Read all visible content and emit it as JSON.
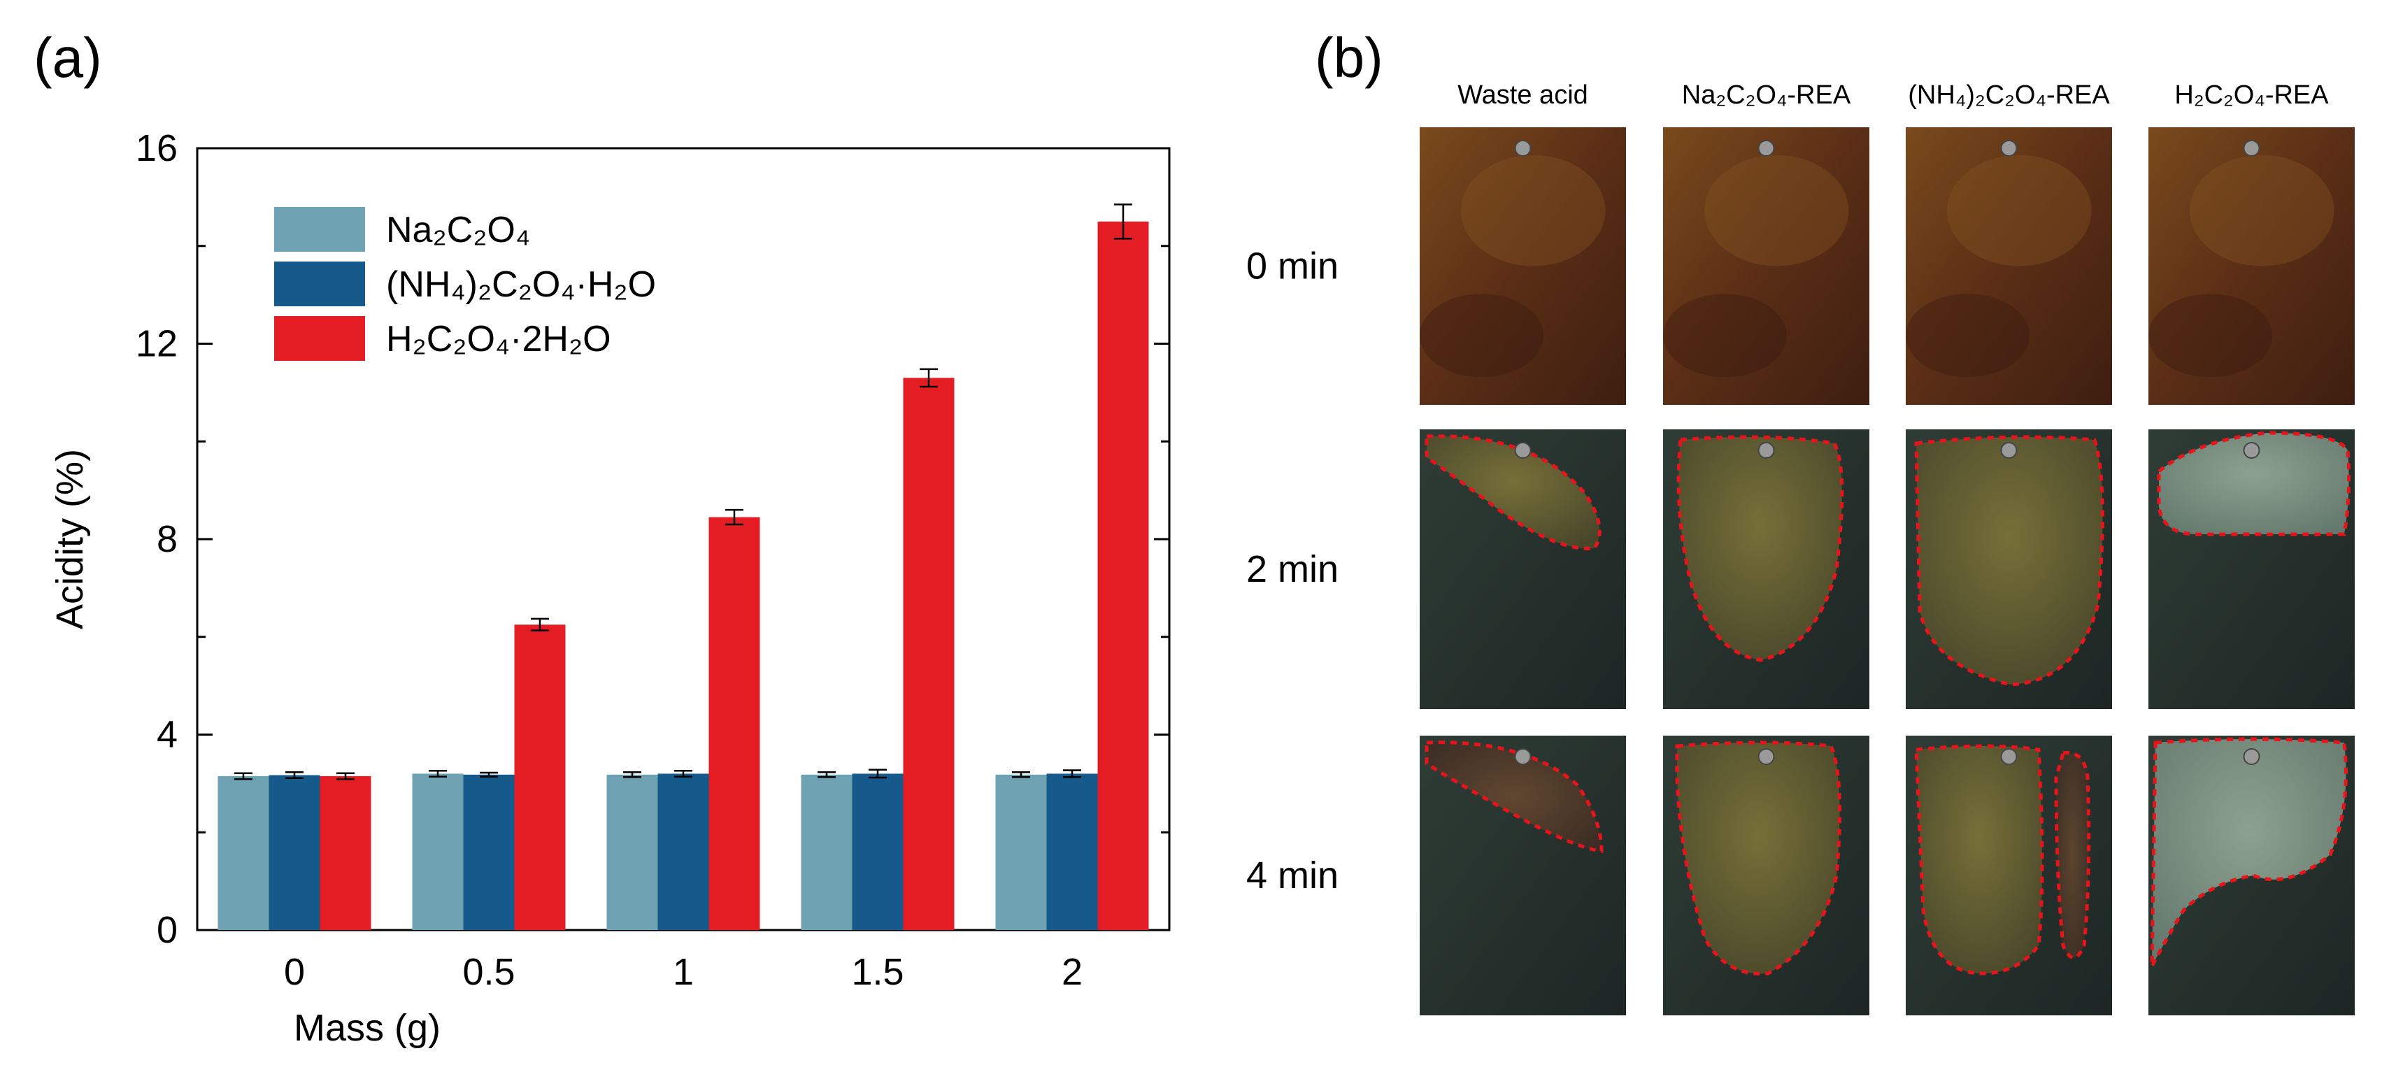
{
  "panel_a_label": "(a)",
  "panel_b_label": "(b)",
  "chart_data": {
    "type": "bar",
    "title": "",
    "xlabel": "Mass (g)",
    "ylabel": "Acidity (%)",
    "ylim": [
      0,
      16
    ],
    "yticks": [
      "0",
      "4",
      "8",
      "12",
      "16"
    ],
    "categories": [
      "0",
      "0.5",
      "1",
      "1.5",
      "2"
    ],
    "legend_position": "top-left",
    "series": [
      {
        "name": "Na₂C₂O₄",
        "color": "#6ea1b2",
        "values": [
          3.15,
          3.2,
          3.18,
          3.18,
          3.18
        ],
        "errors": [
          0.06,
          0.06,
          0.05,
          0.05,
          0.05
        ]
      },
      {
        "name": "(NH₄)₂C₂O₄·H₂O",
        "color": "#155a8a",
        "values": [
          3.17,
          3.18,
          3.2,
          3.2,
          3.2
        ],
        "errors": [
          0.06,
          0.04,
          0.06,
          0.08,
          0.07
        ]
      },
      {
        "name": "H₂C₂O₄·2H₂O",
        "color": "#e41c24",
        "values": [
          3.15,
          6.25,
          8.45,
          11.3,
          14.5
        ],
        "errors": [
          0.06,
          0.12,
          0.15,
          0.18,
          0.35
        ]
      }
    ]
  },
  "photo_grid": {
    "columns": [
      {
        "key": "waste",
        "label": "Waste acid",
        "base": "Waste acid",
        "sub": "",
        "rest": ""
      },
      {
        "key": "na",
        "label": "Na2C2O4-REA",
        "base": "Na",
        "sub": "2",
        "rest": "C2O4-REA"
      },
      {
        "key": "nh4",
        "label": "(NH4)2C2O4-REA",
        "base": "(NH",
        "sub": "4",
        "rest": ")2C2O4-REA"
      },
      {
        "key": "h",
        "label": "H2C2O4-REA",
        "base": "H",
        "sub": "2",
        "rest": "C2O4-REA"
      }
    ],
    "col_texts": [
      "Waste acid",
      "Na₂C₂O₄-REA",
      "(NH₄)₂C₂O₄-REA",
      "H₂C₂O₄-REA"
    ],
    "rows": [
      "0 min",
      "2 min",
      "4 min"
    ],
    "rust_color": "#5a2e16",
    "corroded_color": "#25322f",
    "highlight_color": "#e8141c"
  }
}
